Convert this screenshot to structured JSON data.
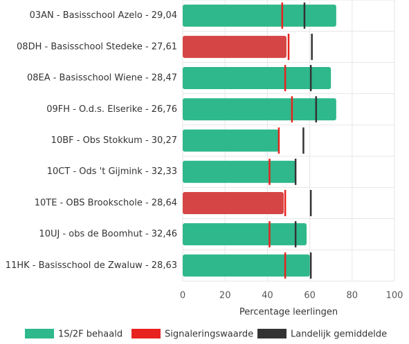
{
  "chart_data": {
    "type": "bar",
    "orientation": "horizontal",
    "categories": [
      "03AN - Basisschool Azelo - 29,04",
      "08DH - Basisschool Stedeke - 27,61",
      "08EA - Basisschool Wiene - 28,47",
      "09FH - O.d.s. Elserike - 26,76",
      "10BF - Obs Stokkum - 30,27",
      "10CT - Ods 't Gijmink - 32,33",
      "10TE - OBS Brookschole - 28,64",
      "10UJ - obs de Boomhut - 32,46",
      "11HK - Basisschool de Zwaluw - 28,63"
    ],
    "series": [
      {
        "name": "1S/2F behaald",
        "color": "#2eb88c",
        "values": [
          72.5,
          49,
          70,
          72.5,
          45.4,
          53.3,
          47.7,
          58.5,
          60
        ],
        "colors": [
          "#2eb88c",
          "#d64545",
          "#2eb88c",
          "#2eb88c",
          "#2eb88c",
          "#2eb88c",
          "#d64545",
          "#2eb88c",
          "#2eb88c"
        ]
      },
      {
        "name": "Signaleringswaarde",
        "color": "#e8231f",
        "values": [
          47,
          50,
          48.4,
          51.6,
          45.4,
          41,
          48.4,
          41,
          48.4
        ]
      },
      {
        "name": "Landelijk gemiddelde",
        "color": "#333333",
        "values": [
          57.5,
          61,
          60.5,
          63,
          57,
          53.3,
          60.5,
          53.3,
          60.5
        ]
      }
    ],
    "xlabel": "Percentage leerlingen",
    "xlim": [
      0,
      100
    ],
    "xticks": [
      0,
      20,
      40,
      60,
      80,
      100
    ],
    "grid": true
  }
}
